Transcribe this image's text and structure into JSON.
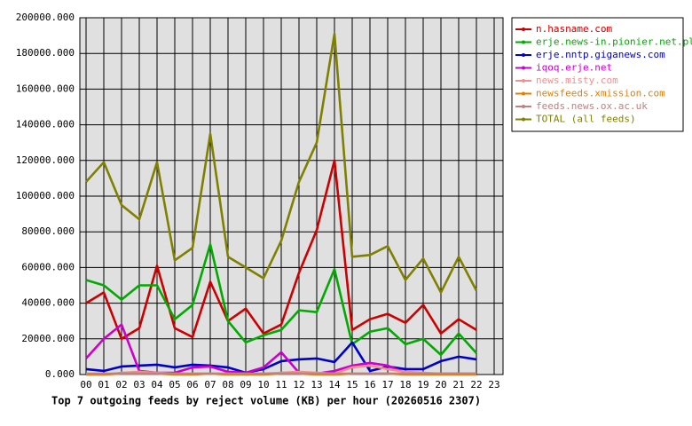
{
  "chart_data": {
    "type": "line",
    "title": "Top 7 outgoing feeds by reject volume (KB) per hour (20260516 2307)",
    "categories": [
      "00",
      "01",
      "02",
      "03",
      "04",
      "05",
      "06",
      "07",
      "08",
      "09",
      "10",
      "11",
      "12",
      "13",
      "14",
      "15",
      "16",
      "17",
      "18",
      "19",
      "20",
      "21",
      "22",
      "23"
    ],
    "ylim": [
      0,
      200000
    ],
    "yticks": [
      {
        "value": 0,
        "label": "0.000"
      },
      {
        "value": 20000,
        "label": "20000.000"
      },
      {
        "value": 40000,
        "label": "40000.000"
      },
      {
        "value": 60000,
        "label": "60000.000"
      },
      {
        "value": 80000,
        "label": "80000.000"
      },
      {
        "value": 100000,
        "label": "100000.000"
      },
      {
        "value": 120000,
        "label": "120000.000"
      },
      {
        "value": 140000,
        "label": "140000.000"
      },
      {
        "value": 160000,
        "label": "160000.000"
      },
      {
        "value": 180000,
        "label": "180000.000"
      },
      {
        "value": 200000,
        "label": "200000.000"
      }
    ],
    "grid": true,
    "legend": "right",
    "series": [
      {
        "name": "n.hasname.com",
        "color": "#cc0000",
        "values": [
          40000,
          46000,
          20000,
          26000,
          61000,
          26000,
          21000,
          52000,
          30000,
          37000,
          23000,
          28000,
          57000,
          81000,
          120000,
          25000,
          31000,
          34000,
          29000,
          39000,
          23000,
          31000,
          25000,
          null
        ]
      },
      {
        "name": "erje.news-in.pionier.net.pl",
        "color": "#00aa00",
        "values": [
          53000,
          50000,
          42000,
          50000,
          50000,
          31000,
          39000,
          73000,
          30000,
          18000,
          22000,
          25000,
          36000,
          35000,
          59000,
          17000,
          24000,
          26000,
          17000,
          20000,
          11000,
          23000,
          12000,
          null
        ]
      },
      {
        "name": "erje.nntp.giganews.com",
        "color": "#0000cc",
        "values": [
          3000,
          2000,
          4500,
          5000,
          5500,
          4000,
          5500,
          5000,
          4000,
          1000,
          3000,
          7500,
          8500,
          9000,
          7000,
          18000,
          2000,
          4500,
          3000,
          3000,
          7500,
          10000,
          8500,
          null
        ]
      },
      {
        "name": "iqoq.erje.net",
        "color": "#cc00cc",
        "values": [
          9000,
          20000,
          28000,
          2000,
          1000,
          1000,
          4000,
          4500,
          1500,
          1000,
          4000,
          12500,
          1000,
          500,
          2000,
          5000,
          6500,
          5000,
          1000,
          500,
          500,
          500,
          500,
          null
        ]
      },
      {
        "name": "news.misty.com",
        "color": "#f09090",
        "values": [
          0,
          0,
          1000,
          1500,
          1000,
          500,
          500,
          500,
          500,
          0,
          500,
          1000,
          1500,
          1000,
          500,
          4000,
          5000,
          3000,
          1500,
          1000,
          500,
          500,
          500,
          null
        ]
      },
      {
        "name": "newsfeeds.xmission.com",
        "color": "#e08000",
        "values": [
          0,
          0,
          500,
          500,
          500,
          0,
          0,
          500,
          0,
          0,
          0,
          500,
          500,
          0,
          0,
          500,
          500,
          500,
          0,
          0,
          0,
          0,
          0,
          null
        ]
      },
      {
        "name": "feeds.news.ox.ac.uk",
        "color": "#c08080",
        "values": [
          500,
          500,
          500,
          500,
          500,
          500,
          500,
          500,
          500,
          500,
          500,
          500,
          500,
          500,
          500,
          500,
          500,
          500,
          500,
          500,
          500,
          500,
          500,
          null
        ]
      },
      {
        "name": "TOTAL (all feeds)",
        "color": "#808000",
        "values": [
          108000,
          119000,
          95000,
          87000,
          119000,
          64000,
          71000,
          135000,
          66000,
          60000,
          54000,
          75000,
          108000,
          130000,
          191000,
          66000,
          67000,
          72000,
          53000,
          65000,
          46000,
          66000,
          47000,
          null
        ]
      }
    ]
  }
}
